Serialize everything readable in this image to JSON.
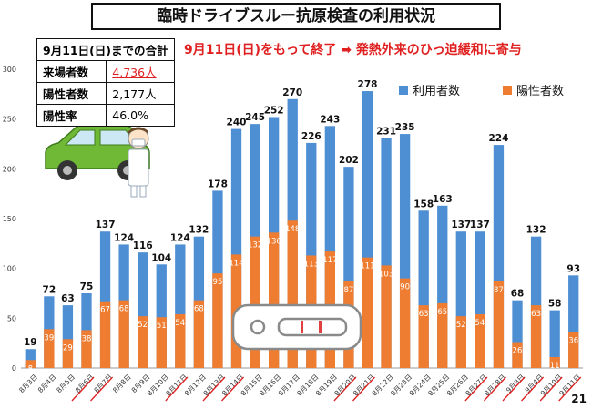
{
  "title": "臨時ドライブスルー抗原検査の利用状況",
  "headline": "9月11日(日)をもって終了 ➡ 発熱外来のひっ迫緩和に寄与",
  "summary": {
    "header": "9月11日(日)までの合計",
    "rows": [
      {
        "label": "来場者数",
        "value": "4,736人"
      },
      {
        "label": "陽性者数",
        "value": "2,177人"
      },
      {
        "label": "陽性率",
        "value": "46.0%"
      }
    ]
  },
  "page_number": "21",
  "colors": {
    "users": "#4e8fd4",
    "positives": "#ee7d31",
    "accent_red": "#e02020"
  },
  "icons": [
    "car-illustration",
    "nurse-illustration",
    "antigen-test-kit-illustration"
  ],
  "chart_data": {
    "type": "bar",
    "title": "",
    "xlabel": "",
    "ylabel": "",
    "ylim": [
      0,
      300
    ],
    "yticks": [
      0,
      50,
      100,
      150,
      200,
      250,
      300
    ],
    "grid": false,
    "legend": "top-right",
    "categories": [
      "8月3日",
      "8月4日",
      "8月5日",
      "8月6日",
      "8月7日",
      "8月8日",
      "8月9日",
      "8月10日",
      "8月11日",
      "8月12日",
      "8月13日",
      "8月14日",
      "8月15日",
      "8月16日",
      "8月17日",
      "8月18日",
      "8月19日",
      "8月20日",
      "8月21日",
      "8月22日",
      "8月23日",
      "8月24日",
      "8月25日",
      "8月26日",
      "8月27日",
      "8月28日",
      "9月3日",
      "9月4日",
      "9月10日",
      "9月11日"
    ],
    "underlined_categories": [
      "8月6日",
      "8月7日",
      "8月11日",
      "8月13日",
      "8月14日",
      "8月20日",
      "8月21日",
      "8月27日",
      "8月28日",
      "9月3日",
      "9月4日",
      "9月10日",
      "9月11日"
    ],
    "series": [
      {
        "name": "利用者数",
        "values": [
          19,
          72,
          63,
          75,
          137,
          124,
          116,
          104,
          124,
          132,
          178,
          240,
          245,
          252,
          270,
          226,
          243,
          202,
          278,
          231,
          235,
          158,
          163,
          137,
          137,
          224,
          68,
          132,
          58,
          93
        ]
      },
      {
        "name": "陽性者数",
        "values": [
          8,
          39,
          29,
          38,
          67,
          68,
          52,
          51,
          54,
          68,
          95,
          114,
          132,
          136,
          148,
          113,
          117,
          87,
          111,
          103,
          90,
          63,
          65,
          52,
          54,
          87,
          26,
          63,
          11,
          36
        ]
      }
    ]
  }
}
